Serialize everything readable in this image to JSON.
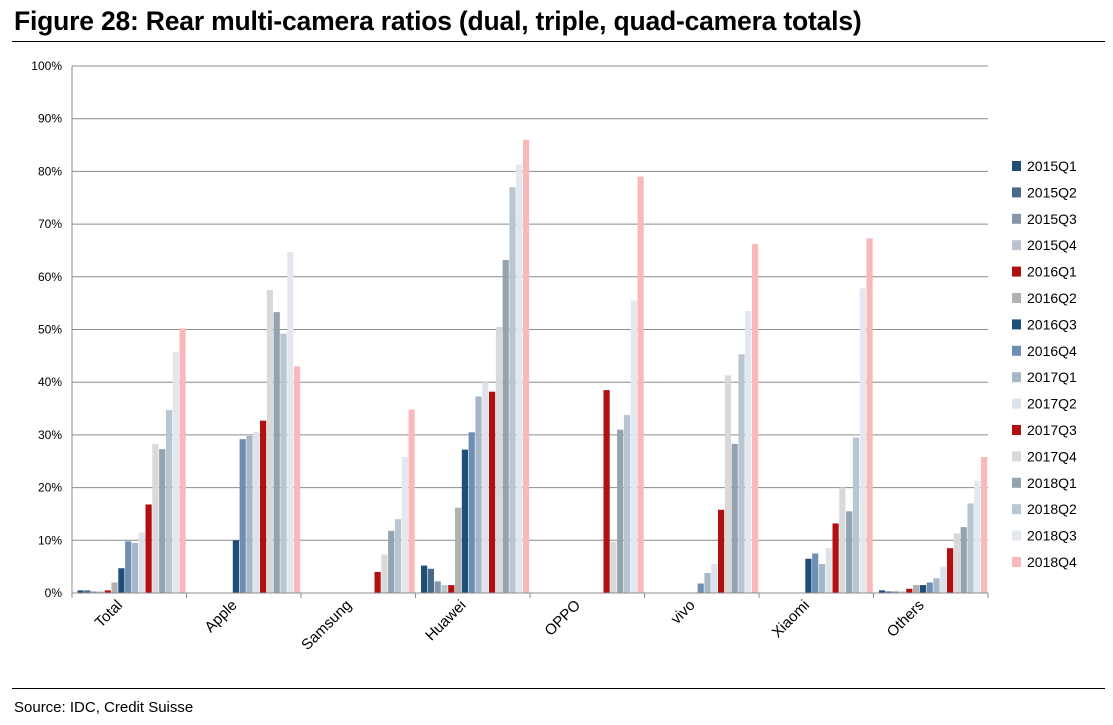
{
  "figure": {
    "title": "Figure 28: Rear multi-camera ratios (dual, triple, quad-camera totals)",
    "source": "Source: IDC, Credit Suisse"
  },
  "chart_data": {
    "type": "bar",
    "title": "",
    "xlabel": "",
    "ylabel": "",
    "ylim": [
      0,
      100
    ],
    "yticks": [
      "0%",
      "10%",
      "20%",
      "30%",
      "40%",
      "50%",
      "60%",
      "70%",
      "80%",
      "90%",
      "100%"
    ],
    "grid": true,
    "legend": "right",
    "categories": [
      "Total",
      "Apple",
      "Samsung",
      "Huawei",
      "OPPO",
      "vivo",
      "Xiaomi",
      "Others"
    ],
    "series": [
      {
        "name": "2015Q1",
        "color": "#1f4e79",
        "values": [
          0.5,
          0,
          0,
          5.2,
          0,
          0,
          0,
          0.5
        ]
      },
      {
        "name": "2015Q2",
        "color": "#4a6a8a",
        "values": [
          0.5,
          0,
          0,
          4.6,
          0,
          0,
          0,
          0.3
        ]
      },
      {
        "name": "2015Q3",
        "color": "#8496a8",
        "values": [
          0.3,
          0,
          0,
          2.2,
          0,
          0,
          0,
          0.3
        ]
      },
      {
        "name": "2015Q4",
        "color": "#b9c4ce",
        "values": [
          0.3,
          0,
          0,
          1.5,
          0,
          0,
          0,
          0.3
        ]
      },
      {
        "name": "2016Q1",
        "color": "#b01010",
        "values": [
          0.5,
          0,
          0,
          1.5,
          0,
          0,
          0,
          0.8
        ]
      },
      {
        "name": "2016Q2",
        "color": "#b0b0b0",
        "values": [
          2.0,
          0,
          0,
          16.2,
          0,
          0,
          0,
          1.5
        ]
      },
      {
        "name": "2016Q3",
        "color": "#1f4e79",
        "values": [
          4.7,
          10.0,
          0,
          27.2,
          0,
          0,
          6.5,
          1.5
        ]
      },
      {
        "name": "2016Q4",
        "color": "#6e8fb3",
        "values": [
          9.8,
          29.2,
          0,
          30.5,
          0,
          1.8,
          7.5,
          2.0
        ]
      },
      {
        "name": "2017Q1",
        "color": "#a7b7c9",
        "values": [
          9.5,
          29.8,
          0,
          37.3,
          0,
          3.8,
          5.5,
          2.8
        ]
      },
      {
        "name": "2017Q2",
        "color": "#dde3eb",
        "values": [
          11.5,
          30.5,
          0,
          40.0,
          0,
          5.5,
          8.5,
          5.0
        ]
      },
      {
        "name": "2017Q3",
        "color": "#b01010",
        "values": [
          16.8,
          32.7,
          4.0,
          38.2,
          38.5,
          15.8,
          13.2,
          8.5
        ]
      },
      {
        "name": "2017Q4",
        "color": "#d9d9d9",
        "values": [
          28.3,
          57.5,
          7.3,
          50.5,
          9.7,
          41.3,
          20.0,
          11.3
        ]
      },
      {
        "name": "2018Q1",
        "color": "#95a2b0",
        "values": [
          27.3,
          53.3,
          11.8,
          63.2,
          31.0,
          28.3,
          15.5,
          12.5
        ]
      },
      {
        "name": "2018Q2",
        "color": "#b8c5d2",
        "values": [
          34.7,
          49.2,
          14.0,
          77.0,
          33.8,
          45.3,
          29.5,
          17.0
        ]
      },
      {
        "name": "2018Q3",
        "color": "#e3e8ee",
        "values": [
          45.8,
          64.7,
          25.8,
          81.3,
          55.5,
          53.5,
          57.8,
          21.3
        ]
      },
      {
        "name": "2018Q4",
        "color": "#f9b8ba",
        "values": [
          50.2,
          43.0,
          34.8,
          86.0,
          79.0,
          66.2,
          67.3,
          25.8
        ]
      }
    ]
  }
}
